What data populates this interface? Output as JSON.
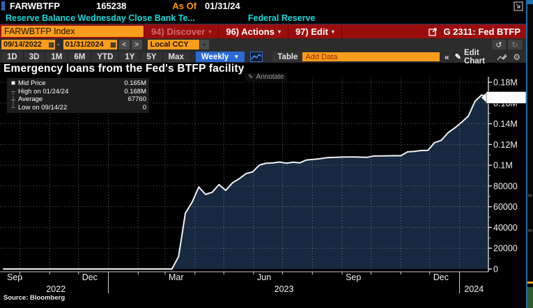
{
  "header": {
    "ticker": "FARWBTFP",
    "last_value": "165238",
    "as_of_label": "As Of",
    "as_of_date": "01/31/24",
    "description": "Reserve Balance Wednesday Close Bank Te...",
    "source_name": "Federal Reserve"
  },
  "menu_bar": {
    "security_field": "FARWBTFP Index",
    "discover": "94) Discover",
    "actions": "96) Actions",
    "edit": "97) Edit",
    "chart_id": "G 2311: Fed BTFP"
  },
  "toolbar": {
    "date_from": "09/14/2022",
    "date_to": "01/31/2024",
    "range_dash": "-",
    "nav_back": "<",
    "nav_fwd": ">",
    "currency": "Local CCY",
    "periods": [
      "1D",
      "3D",
      "1M",
      "6M",
      "YTD",
      "1Y",
      "5Y",
      "Max"
    ],
    "frequency": "Weekly",
    "table_label": "Table",
    "add_data_placeholder": "Add Data",
    "edit_chart_label": "Edit Chart"
  },
  "icons": {
    "dropdown_arrow": "▾",
    "calendar_glyph": "▦",
    "undo_glyph": "↺",
    "redo_glyph": "↻",
    "collapse_glyph": "«",
    "pencil_glyph": "✎",
    "gear_glyph": "⚙"
  },
  "chart": {
    "title": "Emergency loans from the Fed's BTFP facility",
    "annotate_label": "Annotate",
    "source_label": "Source: Bloomberg",
    "legend": [
      {
        "marker_glyph": "■",
        "label": "Mid Price",
        "value": "0.165M"
      },
      {
        "marker_glyph": "┬",
        "label": "High on 01/24/24",
        "value": "0.168M"
      },
      {
        "marker_glyph": "┼",
        "label": "Average",
        "value": "67760"
      },
      {
        "marker_glyph": "┴",
        "label": "Low on 09/14/22",
        "value": "0"
      }
    ]
  },
  "chart_data": {
    "type": "area",
    "title": "Emergency loans from the Fed's BTFP facility",
    "series_name": "Mid Price",
    "x_domain": [
      "2022-09-14",
      "2024-01-31"
    ],
    "ylim": [
      0,
      180000
    ],
    "grid": "dotted",
    "colors": {
      "fill": "#172940",
      "line": "#f2f2f2",
      "axis": "#c9c9c9"
    },
    "last_point": {
      "date": "2024-01-31",
      "value": 165238,
      "label": "0.165M"
    },
    "y_ticks": [
      {
        "v": 180000,
        "label": "0.18M"
      },
      {
        "v": 160000,
        "label": "0.16M"
      },
      {
        "v": 140000,
        "label": "0.14M"
      },
      {
        "v": 120000,
        "label": "0.12M"
      },
      {
        "v": 100000,
        "label": "0.1M"
      },
      {
        "v": 80000,
        "label": "80000"
      },
      {
        "v": 60000,
        "label": "60000"
      },
      {
        "v": 40000,
        "label": "40000"
      },
      {
        "v": 20000,
        "label": "20000"
      },
      {
        "v": 0,
        "label": "0"
      }
    ],
    "x_ticks": [
      {
        "d": "2022-09-14",
        "label": "Sep"
      },
      {
        "d": "2022-12-01",
        "label": "Dec"
      },
      {
        "d": "2023-03-01",
        "label": "Mar"
      },
      {
        "d": "2023-06-01",
        "label": "Jun"
      },
      {
        "d": "2023-09-01",
        "label": "Sep"
      },
      {
        "d": "2023-12-01",
        "label": "Dec"
      }
    ],
    "year_ticks": [
      {
        "label": "2022",
        "from": "2022-09-14",
        "to": "2023-01-01"
      },
      {
        "label": "2023",
        "from": "2023-01-01",
        "to": "2024-01-01"
      },
      {
        "label": "2024",
        "from": "2024-01-01",
        "to": "2024-01-31"
      }
    ],
    "series": [
      {
        "name": "Mid Price",
        "points": [
          [
            "2022-09-14",
            0
          ],
          [
            "2023-03-08",
            0
          ],
          [
            "2023-03-15",
            11943
          ],
          [
            "2023-03-22",
            53669
          ],
          [
            "2023-03-29",
            64403
          ],
          [
            "2023-04-05",
            79021
          ],
          [
            "2023-04-12",
            71837
          ],
          [
            "2023-04-19",
            73982
          ],
          [
            "2023-04-26",
            81327
          ],
          [
            "2023-05-03",
            75778
          ],
          [
            "2023-05-10",
            83101
          ],
          [
            "2023-05-17",
            87006
          ],
          [
            "2023-05-24",
            91907
          ],
          [
            "2023-05-31",
            93615
          ],
          [
            "2023-06-07",
            100161
          ],
          [
            "2023-06-14",
            101969
          ],
          [
            "2023-06-21",
            102305
          ],
          [
            "2023-06-28",
            103081
          ],
          [
            "2023-07-05",
            101961
          ],
          [
            "2023-07-12",
            102925
          ],
          [
            "2023-07-19",
            102264
          ],
          [
            "2023-07-26",
            105078
          ],
          [
            "2023-08-02",
            105680
          ],
          [
            "2023-08-09",
            106238
          ],
          [
            "2023-08-16",
            107294
          ],
          [
            "2023-08-23",
            107528
          ],
          [
            "2023-08-30",
            107776
          ],
          [
            "2023-09-06",
            108016
          ],
          [
            "2023-09-13",
            107993
          ],
          [
            "2023-09-20",
            107790
          ],
          [
            "2023-09-27",
            107666
          ],
          [
            "2023-10-04",
            108878
          ],
          [
            "2023-10-11",
            109041
          ],
          [
            "2023-10-18",
            109047
          ],
          [
            "2023-10-25",
            109202
          ],
          [
            "2023-11-01",
            109138
          ],
          [
            "2023-11-08",
            112897
          ],
          [
            "2023-11-15",
            113285
          ],
          [
            "2023-11-22",
            114180
          ],
          [
            "2023-11-29",
            114284
          ],
          [
            "2023-12-06",
            121742
          ],
          [
            "2023-12-13",
            123961
          ],
          [
            "2023-12-20",
            131331
          ],
          [
            "2023-12-27",
            135970
          ],
          [
            "2024-01-03",
            141330
          ],
          [
            "2024-01-10",
            147180
          ],
          [
            "2024-01-17",
            161503
          ],
          [
            "2024-01-24",
            167768
          ],
          [
            "2024-01-31",
            165238
          ]
        ]
      }
    ]
  }
}
